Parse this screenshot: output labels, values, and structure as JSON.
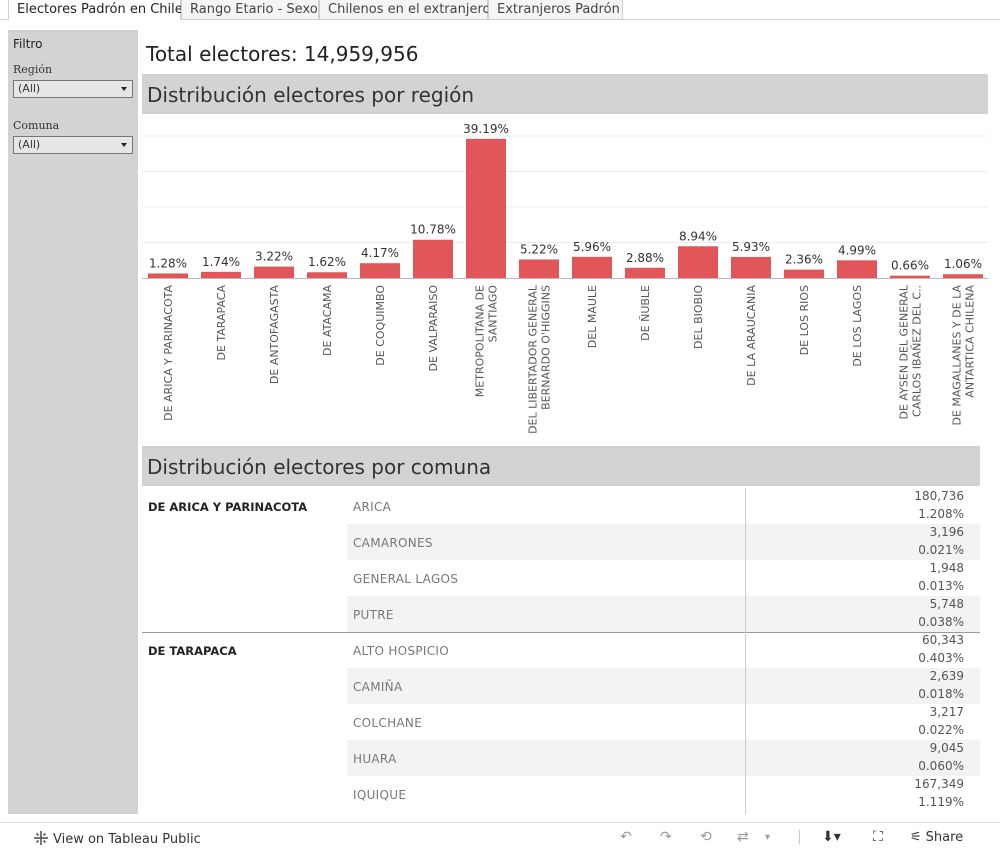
{
  "tabs": [
    {
      "label": "Electores Padrón en Chile",
      "active": true
    },
    {
      "label": "Rango Etario - Sexo",
      "active": false
    },
    {
      "label": "Chilenos en el extranjero",
      "active": false
    },
    {
      "label": "Extranjeros Padrón",
      "active": false
    }
  ],
  "filters": {
    "title": "Filtro",
    "region_label": "Región",
    "region_value": "(All)",
    "comuna_label": "Comuna",
    "comuna_value": "(All)"
  },
  "total_label": "Total electores: 14,959,956",
  "region_section_title": "Distribución electores por región",
  "comuna_section_title": "Distribución electores por comuna",
  "chart_data": {
    "type": "bar",
    "categories": [
      [
        "DE ARICA Y PARINACOTA"
      ],
      [
        "DE TARAPACA"
      ],
      [
        "DE ANTOFAGASTA"
      ],
      [
        "DE ATACAMA"
      ],
      [
        "DE COQUIMBO"
      ],
      [
        "DE VALPARAISO"
      ],
      [
        "METROPOLITANA DE",
        "SANTIAGO"
      ],
      [
        "DEL LIBERTADOR GENERAL",
        "BERNARDO O'HIGGINS"
      ],
      [
        "DEL MAULE"
      ],
      [
        "DE ÑUBLE"
      ],
      [
        "DEL BIOBIO"
      ],
      [
        "DE LA ARAUCANIA"
      ],
      [
        "DE LOS RIOS"
      ],
      [
        "DE LOS LAGOS"
      ],
      [
        "DE AYSEN DEL GENERAL",
        "CARLOS IBAÑEZ DEL C.."
      ],
      [
        "DE MAGALLANES Y DE LA",
        "ANTARTICA CHILENA"
      ]
    ],
    "values": [
      1.28,
      1.74,
      3.22,
      1.62,
      4.17,
      10.78,
      39.19,
      5.22,
      5.96,
      2.88,
      8.94,
      5.93,
      2.36,
      4.99,
      0.66,
      1.06
    ],
    "labels": [
      "1.28%",
      "1.74%",
      "3.22%",
      "1.62%",
      "4.17%",
      "10.78%",
      "39.19%",
      "5.22%",
      "5.96%",
      "2.88%",
      "8.94%",
      "5.93%",
      "2.36%",
      "4.99%",
      "0.66%",
      "1.06%"
    ],
    "ylim": [
      0,
      40
    ],
    "grid": true,
    "bar_color": "#e15759"
  },
  "comuna_table": [
    {
      "region": "DE ARICA Y PARINACOTA",
      "rows": [
        {
          "comuna": "ARICA",
          "count": "180,736",
          "pct": "1.208%"
        },
        {
          "comuna": "CAMARONES",
          "count": "3,196",
          "pct": "0.021%"
        },
        {
          "comuna": "GENERAL LAGOS",
          "count": "1,948",
          "pct": "0.013%"
        },
        {
          "comuna": "PUTRE",
          "count": "5,748",
          "pct": "0.038%"
        }
      ]
    },
    {
      "region": "DE TARAPACA",
      "rows": [
        {
          "comuna": "ALTO HOSPICIO",
          "count": "60,343",
          "pct": "0.403%"
        },
        {
          "comuna": "CAMIÑA",
          "count": "2,639",
          "pct": "0.018%"
        },
        {
          "comuna": "COLCHANE",
          "count": "3,217",
          "pct": "0.022%"
        },
        {
          "comuna": "HUARA",
          "count": "9,045",
          "pct": "0.060%"
        },
        {
          "comuna": "IQUIQUE",
          "count": "167,349",
          "pct": "1.119%"
        }
      ]
    }
  ],
  "footer": {
    "view_label": "View on Tableau Public",
    "share_label": "Share"
  }
}
